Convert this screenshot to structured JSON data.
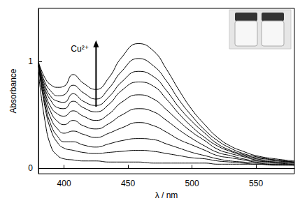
{
  "chart_data": {
    "type": "line",
    "x_label": "λ / nm",
    "y_label": "Absorbance",
    "annotation": "Cu²⁺",
    "color": "#000000",
    "grid": false,
    "xlim": [
      380,
      580
    ],
    "xticks": [
      400,
      450,
      500,
      550
    ],
    "ylim": [
      -0.05,
      1.5
    ],
    "yticks": [
      0,
      1
    ],
    "x": [
      380,
      385,
      390,
      395,
      400,
      407,
      415,
      425,
      435,
      445,
      458,
      470,
      480,
      490,
      500,
      510,
      520,
      530,
      540,
      550,
      565,
      580
    ],
    "series": [
      {
        "values": [
          0.9,
          0.45,
          0.2,
          0.12,
          0.09,
          0.08,
          0.07,
          0.07,
          0.06,
          0.06,
          0.06,
          0.05,
          0.05,
          0.05,
          0.05,
          0.05,
          0.04,
          0.04,
          0.04,
          0.04,
          0.03,
          0.03
        ]
      },
      {
        "values": [
          0.96,
          0.58,
          0.35,
          0.24,
          0.19,
          0.17,
          0.15,
          0.14,
          0.15,
          0.16,
          0.17,
          0.16,
          0.14,
          0.12,
          0.1,
          0.09,
          0.07,
          0.06,
          0.05,
          0.04,
          0.04,
          0.03
        ]
      },
      {
        "values": [
          0.96,
          0.61,
          0.4,
          0.3,
          0.25,
          0.25,
          0.22,
          0.2,
          0.23,
          0.26,
          0.28,
          0.27,
          0.23,
          0.19,
          0.15,
          0.12,
          0.09,
          0.07,
          0.06,
          0.05,
          0.04,
          0.04
        ]
      },
      {
        "values": [
          0.97,
          0.65,
          0.46,
          0.37,
          0.33,
          0.35,
          0.32,
          0.29,
          0.33,
          0.38,
          0.43,
          0.4,
          0.34,
          0.27,
          0.22,
          0.17,
          0.12,
          0.1,
          0.08,
          0.06,
          0.05,
          0.04
        ]
      },
      {
        "values": [
          0.97,
          0.69,
          0.52,
          0.44,
          0.41,
          0.45,
          0.4,
          0.37,
          0.42,
          0.5,
          0.56,
          0.53,
          0.45,
          0.36,
          0.28,
          0.21,
          0.15,
          0.12,
          0.09,
          0.07,
          0.06,
          0.05
        ]
      },
      {
        "values": [
          0.98,
          0.72,
          0.57,
          0.51,
          0.49,
          0.54,
          0.49,
          0.45,
          0.51,
          0.62,
          0.69,
          0.65,
          0.55,
          0.44,
          0.34,
          0.26,
          0.18,
          0.14,
          0.11,
          0.08,
          0.06,
          0.05
        ]
      },
      {
        "values": [
          0.98,
          0.75,
          0.63,
          0.57,
          0.56,
          0.63,
          0.57,
          0.53,
          0.6,
          0.73,
          0.81,
          0.77,
          0.65,
          0.51,
          0.39,
          0.29,
          0.21,
          0.16,
          0.12,
          0.09,
          0.07,
          0.06
        ]
      },
      {
        "values": [
          0.99,
          0.78,
          0.67,
          0.63,
          0.62,
          0.7,
          0.63,
          0.59,
          0.67,
          0.81,
          0.91,
          0.86,
          0.73,
          0.57,
          0.44,
          0.33,
          0.23,
          0.17,
          0.13,
          0.1,
          0.08,
          0.06
        ]
      },
      {
        "values": [
          0.99,
          0.81,
          0.72,
          0.68,
          0.69,
          0.78,
          0.71,
          0.65,
          0.75,
          0.91,
          1.03,
          0.96,
          0.82,
          0.64,
          0.49,
          0.36,
          0.26,
          0.19,
          0.14,
          0.11,
          0.08,
          0.06
        ]
      },
      {
        "values": [
          1.0,
          0.85,
          0.78,
          0.76,
          0.77,
          0.88,
          0.8,
          0.74,
          0.85,
          1.04,
          1.17,
          1.1,
          0.93,
          0.73,
          0.55,
          0.41,
          0.29,
          0.21,
          0.16,
          0.12,
          0.09,
          0.07
        ]
      }
    ]
  }
}
